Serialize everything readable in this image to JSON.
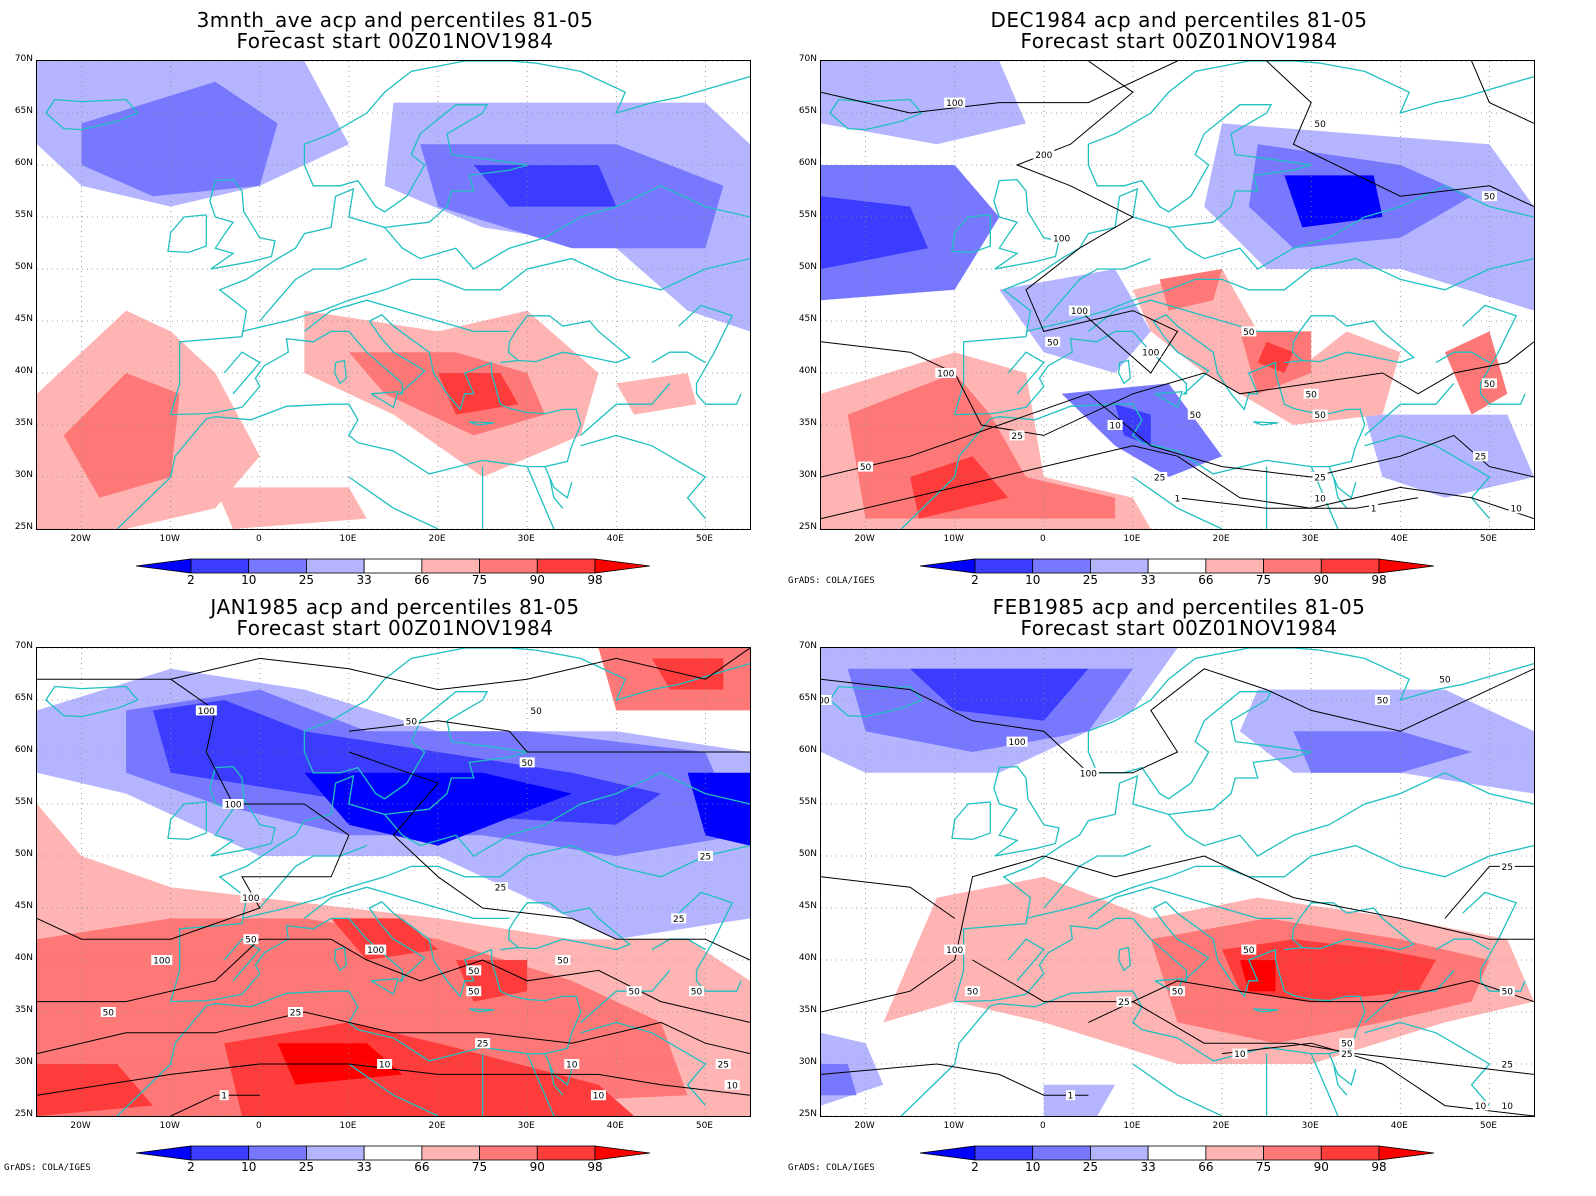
{
  "panels": [
    {
      "title1": "3mnth_ave acp and percentiles 81-05",
      "title2": "Forecast start 00Z01NOV1984",
      "credit": "",
      "contour_labels": []
    },
    {
      "title1": "DEC1984 acp and percentiles 81-05",
      "title2": "Forecast start 00Z01NOV1984",
      "credit": "GrADS: COLA/IGES",
      "contour_labels": [
        {
          "text": "100",
          "lon": -10,
          "lat": 66
        },
        {
          "text": "200",
          "lon": 0,
          "lat": 61
        },
        {
          "text": "100",
          "lon": 2,
          "lat": 53
        },
        {
          "text": "100",
          "lon": 4,
          "lat": 46
        },
        {
          "text": "100",
          "lon": 12,
          "lat": 42
        },
        {
          "text": "100",
          "lon": -11,
          "lat": 40
        },
        {
          "text": "50",
          "lon": 1,
          "lat": 43
        },
        {
          "text": "50",
          "lon": 23,
          "lat": 44
        },
        {
          "text": "50",
          "lon": 17,
          "lat": 36
        },
        {
          "text": "50",
          "lon": 30,
          "lat": 38
        },
        {
          "text": "50",
          "lon": 31,
          "lat": 36
        },
        {
          "text": "50",
          "lon": 31,
          "lat": 64
        },
        {
          "text": "50",
          "lon": 50,
          "lat": 57
        },
        {
          "text": "50",
          "lon": 50,
          "lat": 39
        },
        {
          "text": "50",
          "lon": -20,
          "lat": 31
        },
        {
          "text": "25",
          "lon": -3,
          "lat": 34
        },
        {
          "text": "25",
          "lon": 13,
          "lat": 30
        },
        {
          "text": "25",
          "lon": 31,
          "lat": 30
        },
        {
          "text": "25",
          "lon": 49,
          "lat": 32
        },
        {
          "text": "10",
          "lon": 8,
          "lat": 35
        },
        {
          "text": "10",
          "lon": 31,
          "lat": 28
        },
        {
          "text": "10",
          "lon": 53,
          "lat": 27
        },
        {
          "text": "1",
          "lon": 15,
          "lat": 28
        },
        {
          "text": "1",
          "lon": 37,
          "lat": 27
        }
      ]
    },
    {
      "title1": "JAN1985 acp and percentiles 81-05",
      "title2": "Forecast start 00Z01NOV1984",
      "credit": "GrADS: COLA/IGES",
      "contour_labels": [
        {
          "text": "100",
          "lon": -6,
          "lat": 64
        },
        {
          "text": "50",
          "lon": 17,
          "lat": 63
        },
        {
          "text": "50",
          "lon": 31,
          "lat": 64
        },
        {
          "text": "50",
          "lon": 30,
          "lat": 59
        },
        {
          "text": "100",
          "lon": -3,
          "lat": 55
        },
        {
          "text": "100",
          "lon": -1,
          "lat": 46
        },
        {
          "text": "100",
          "lon": 13,
          "lat": 41
        },
        {
          "text": "100",
          "lon": -11,
          "lat": 40
        },
        {
          "text": "50",
          "lon": -1,
          "lat": 42
        },
        {
          "text": "50",
          "lon": 24,
          "lat": 39
        },
        {
          "text": "50",
          "lon": 24,
          "lat": 37
        },
        {
          "text": "50",
          "lon": 34,
          "lat": 40
        },
        {
          "text": "50",
          "lon": 42,
          "lat": 37
        },
        {
          "text": "50",
          "lon": 49,
          "lat": 37
        },
        {
          "text": "50",
          "lon": -17,
          "lat": 35
        },
        {
          "text": "25",
          "lon": 4,
          "lat": 35
        },
        {
          "text": "25",
          "lon": 25,
          "lat": 32
        },
        {
          "text": "25",
          "lon": 27,
          "lat": 47
        },
        {
          "text": "25",
          "lon": 47,
          "lat": 44
        },
        {
          "text": "25",
          "lon": 52,
          "lat": 30
        },
        {
          "text": "25",
          "lon": 50,
          "lat": 50
        },
        {
          "text": "10",
          "lon": 14,
          "lat": 30
        },
        {
          "text": "10",
          "lon": 35,
          "lat": 30
        },
        {
          "text": "10",
          "lon": 38,
          "lat": 27
        },
        {
          "text": "10",
          "lon": 53,
          "lat": 28
        },
        {
          "text": "1",
          "lon": -4,
          "lat": 27
        }
      ]
    },
    {
      "title1": "FEB1985 acp and percentiles 81-05",
      "title2": "Forecast start 00Z01NOV1984",
      "credit": "GrADS: COLA/IGES",
      "contour_labels": [
        {
          "text": "100",
          "lon": -25,
          "lat": 65
        },
        {
          "text": "100",
          "lon": -3,
          "lat": 61
        },
        {
          "text": "100",
          "lon": 5,
          "lat": 58
        },
        {
          "text": "50",
          "lon": 38,
          "lat": 65
        },
        {
          "text": "50",
          "lon": 45,
          "lat": 67
        },
        {
          "text": "100",
          "lon": -10,
          "lat": 41
        },
        {
          "text": "50",
          "lon": -8,
          "lat": 37
        },
        {
          "text": "50",
          "lon": 23,
          "lat": 41
        },
        {
          "text": "50",
          "lon": 15,
          "lat": 37
        },
        {
          "text": "50",
          "lon": 52,
          "lat": 37
        },
        {
          "text": "50",
          "lon": 34,
          "lat": 32
        },
        {
          "text": "25",
          "lon": 9,
          "lat": 36
        },
        {
          "text": "25",
          "lon": 34,
          "lat": 31
        },
        {
          "text": "25",
          "lon": 52,
          "lat": 49
        },
        {
          "text": "25",
          "lon": 52,
          "lat": 30
        },
        {
          "text": "10",
          "lon": 22,
          "lat": 31
        },
        {
          "text": "10",
          "lon": 49,
          "lat": 26
        },
        {
          "text": "10",
          "lon": 52,
          "lat": 26
        },
        {
          "text": "1",
          "lon": 3,
          "lat": 27
        }
      ]
    }
  ],
  "axes": {
    "lat_labels": [
      "70N",
      "65N",
      "60N",
      "55N",
      "50N",
      "45N",
      "40N",
      "35N",
      "30N",
      "25N"
    ],
    "lat_values": [
      70,
      65,
      60,
      55,
      50,
      45,
      40,
      35,
      30,
      25
    ],
    "lon_labels": [
      "20W",
      "10W",
      "0",
      "10E",
      "20E",
      "30E",
      "40E",
      "50E"
    ],
    "lon_values": [
      -20,
      -10,
      0,
      10,
      20,
      30,
      40,
      50
    ],
    "lon_range": [
      -25,
      55
    ],
    "lat_range": [
      25,
      70
    ]
  },
  "colorbar": {
    "labels": [
      "2",
      "10",
      "25",
      "33",
      "66",
      "75",
      "90",
      "98"
    ],
    "colors": [
      "#0000ff",
      "#3c3cff",
      "#7878ff",
      "#b4b4ff",
      "#ffffff",
      "#ffb4b4",
      "#ff7878",
      "#ff3c3c",
      "#ff0000"
    ]
  },
  "colors": {
    "coast": "#20c0c0",
    "contour": "#000000"
  }
}
